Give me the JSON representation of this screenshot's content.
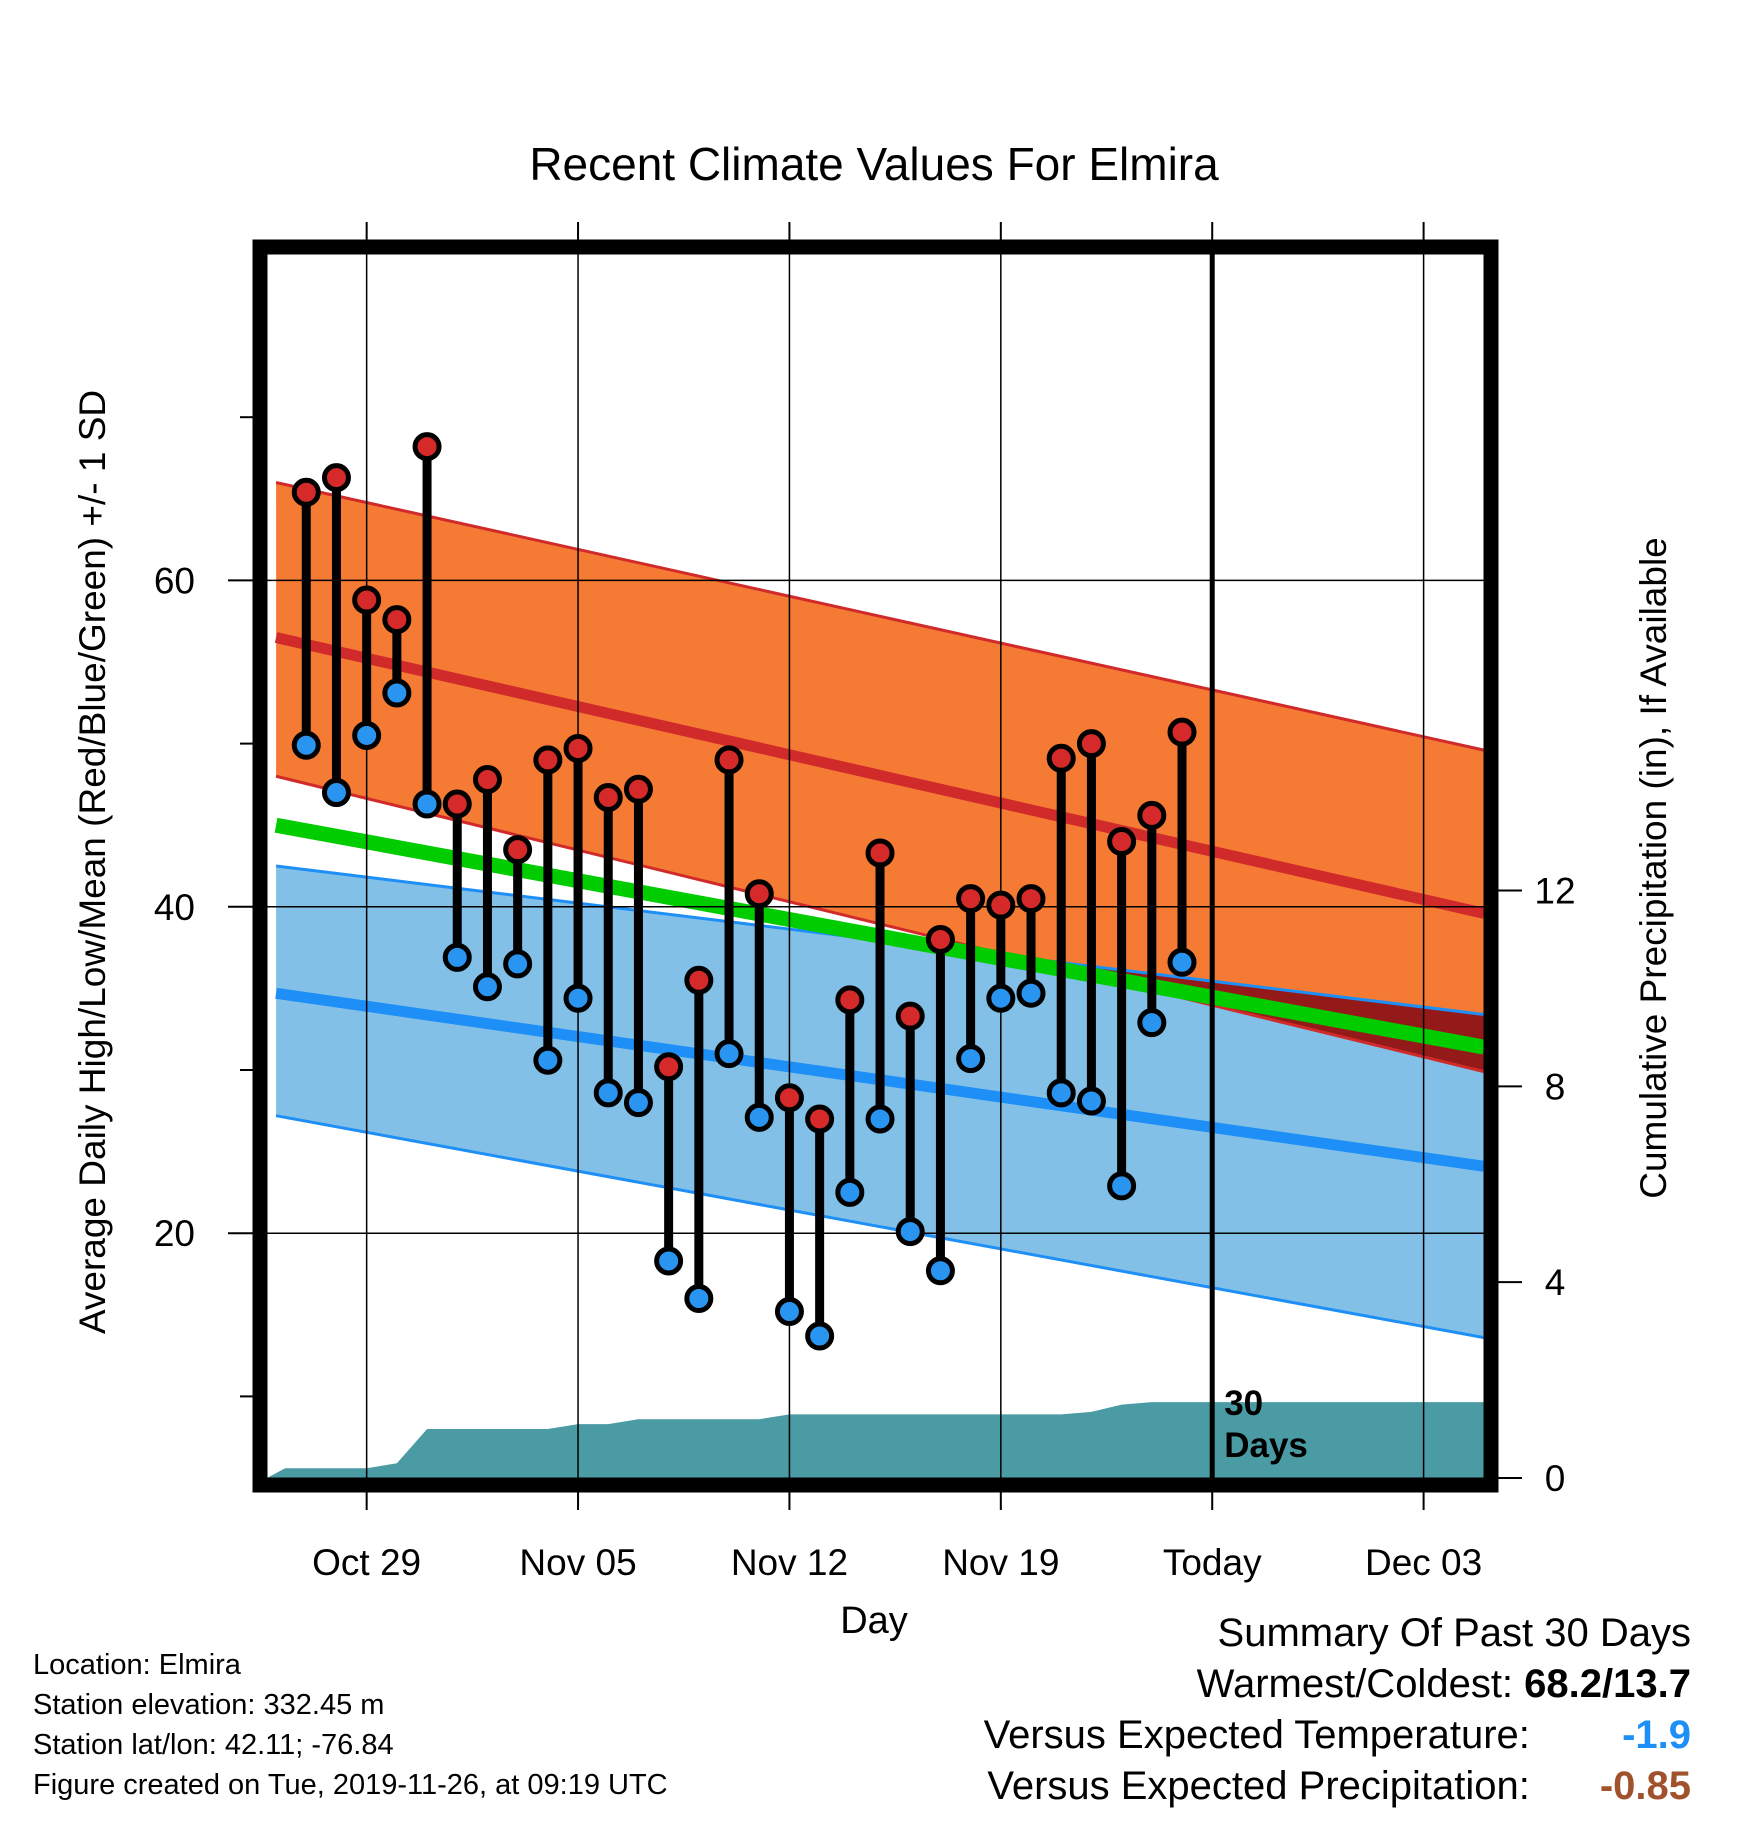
{
  "chart_data": {
    "type": "line",
    "title": "Recent Climate Values For Elmira",
    "xlabel": "Day",
    "ylabel": "Average Daily High/Low/Mean (Red/Blue/Green) +/- 1 SD",
    "y2label": "Cumulative Precipitation (in), If Available",
    "x_tick_labels": [
      "Oct 29",
      "Nov 05",
      "Nov 12",
      "Nov 19",
      "Today",
      "Dec 03"
    ],
    "x_tick_days": [
      3,
      10,
      17,
      24,
      31,
      38
    ],
    "xlim": [
      -0.3,
      40.0
    ],
    "ylim": [
      5,
      80
    ],
    "y_ticks": [
      20,
      40,
      60
    ],
    "y2lim": [
      0,
      25
    ],
    "y2_ticks": [
      0,
      4,
      8,
      12
    ],
    "today_day": 31,
    "today_label": "30\nDays",
    "grid": true,
    "colors": {
      "high_band": "#f57a33",
      "high_mean": "#d12a2a",
      "low_band": "#82c0e7",
      "low_mean": "#1e8ff7",
      "overall_mean": "#00cc00",
      "band_overlap": "#941a1a",
      "precip": "#4a9ba3",
      "high_marker": "#d62a2a",
      "low_marker": "#2a95f0"
    },
    "normals": {
      "days": [
        0,
        40
      ],
      "high_mean": [
        56.5,
        39.6
      ],
      "high_upper": [
        66.0,
        49.6
      ],
      "high_lower": [
        48.0,
        29.9
      ],
      "low_mean": [
        34.7,
        24.1
      ],
      "low_upper": [
        42.5,
        33.4
      ],
      "low_lower": [
        27.2,
        13.6
      ],
      "overall_mean": [
        45.0,
        31.4
      ]
    },
    "series": [
      {
        "name": "High",
        "x": [
          1,
          2,
          3,
          4,
          5,
          6,
          7,
          8,
          9,
          10,
          11,
          12,
          13,
          14,
          15,
          16,
          17,
          18,
          19,
          20,
          21,
          22,
          23,
          24,
          25,
          26,
          27,
          28,
          29,
          30
        ],
        "values": [
          65.4,
          66.3,
          58.8,
          57.6,
          68.2,
          46.3,
          47.8,
          43.5,
          49.0,
          49.7,
          46.7,
          47.2,
          30.2,
          35.5,
          49.0,
          40.8,
          28.3,
          27.0,
          34.3,
          43.3,
          33.3,
          38.0,
          40.5,
          40.1,
          40.5,
          49.1,
          50.0,
          44.0,
          45.6,
          50.7
        ]
      },
      {
        "name": "Low",
        "x": [
          1,
          2,
          3,
          4,
          5,
          6,
          7,
          8,
          9,
          10,
          11,
          12,
          13,
          14,
          15,
          16,
          17,
          18,
          19,
          20,
          21,
          22,
          23,
          24,
          25,
          26,
          27,
          28,
          29,
          30
        ],
        "values": [
          49.9,
          47.0,
          50.5,
          53.1,
          46.3,
          36.9,
          35.1,
          36.5,
          30.6,
          34.4,
          28.6,
          28.0,
          18.3,
          16.0,
          31.0,
          27.1,
          15.2,
          13.7,
          22.5,
          27.0,
          20.1,
          17.7,
          30.7,
          34.4,
          34.7,
          28.6,
          28.1,
          22.9,
          32.9,
          36.6
        ]
      },
      {
        "name": "Precipitation",
        "x": [
          -0.3,
          0.3,
          1,
          2,
          3,
          4,
          5,
          6,
          7,
          8,
          9,
          10,
          11,
          12,
          13,
          14,
          15,
          16,
          17,
          18,
          19,
          20,
          21,
          22,
          23,
          24,
          25,
          26,
          27,
          28,
          29,
          30,
          40
        ],
        "values": [
          0,
          0.2,
          0.2,
          0.2,
          0.2,
          0.3,
          1.0,
          1.0,
          1.0,
          1.0,
          1.0,
          1.1,
          1.1,
          1.2,
          1.2,
          1.2,
          1.2,
          1.2,
          1.3,
          1.3,
          1.3,
          1.3,
          1.3,
          1.3,
          1.3,
          1.3,
          1.3,
          1.3,
          1.35,
          1.5,
          1.55,
          1.55,
          1.55
        ]
      }
    ]
  },
  "info": {
    "location": "Location: Elmira",
    "elevation": "Station elevation: 332.45 m",
    "latlon": "Station lat/lon: 42.11; -76.84",
    "created": "Figure created on Tue, 2019-11-26, at 09:19 UTC"
  },
  "summary": {
    "title": "Summary Of Past 30 Days",
    "warm_cold_label": "Warmest/Coldest:",
    "warm_cold_value": "68.2/13.7",
    "temp_label": "Versus Expected Temperature:",
    "temp_value": "-1.9",
    "temp_color": "#1e8ff7",
    "precip_label": "Versus Expected Precipitation:",
    "precip_value": "-0.85",
    "precip_color": "#a0522d"
  }
}
